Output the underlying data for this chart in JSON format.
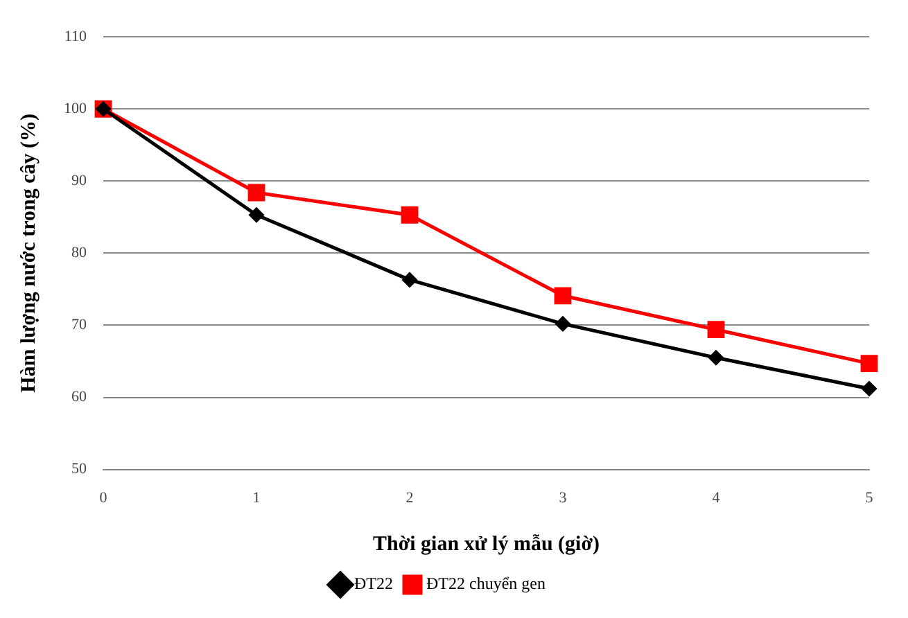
{
  "chart_data": {
    "type": "line",
    "xlabel": "Thời gian xử lý mẫu (giờ)",
    "ylabel": "Hàm lượng nước trong cây (%)",
    "categories": [
      "0",
      "1",
      "2",
      "3",
      "4",
      "5"
    ],
    "series": [
      {
        "name": "ĐT22",
        "color": "#000000",
        "marker": "diamond",
        "values": [
          100,
          85.3,
          76.3,
          70.2,
          65.5,
          61.2
        ]
      },
      {
        "name": "ĐT22 chuyển gen",
        "color": "#ff0000",
        "marker": "square",
        "values": [
          100,
          88.4,
          85.3,
          74.1,
          69.4,
          64.7
        ]
      }
    ],
    "ylim": [
      50,
      110
    ],
    "yticks": [
      50,
      60,
      70,
      80,
      90,
      100,
      110
    ],
    "grid": "y",
    "legend": "bottom",
    "line_style": "solid"
  }
}
